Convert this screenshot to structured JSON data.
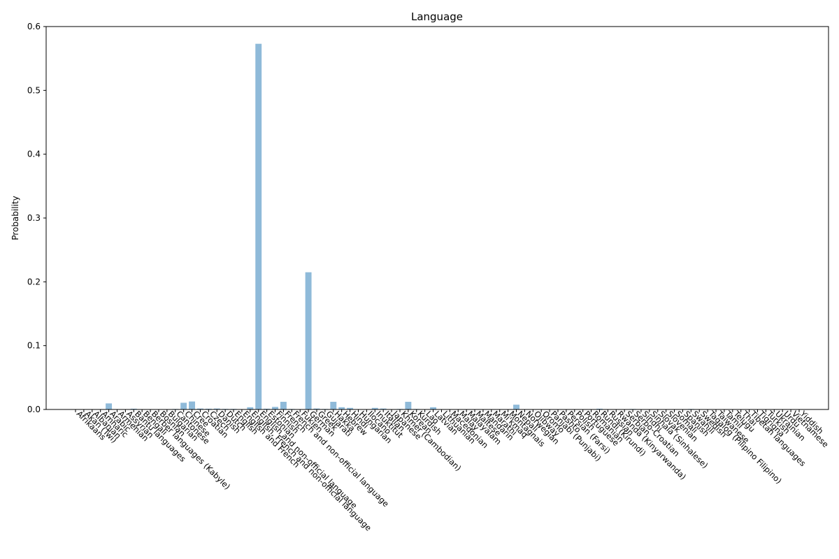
{
  "chart_data": {
    "type": "bar",
    "title": "Language",
    "xlabel": "",
    "ylabel": "Probability",
    "ylim": [
      0,
      0.6
    ],
    "yticks": [
      0.0,
      0.1,
      0.2,
      0.3,
      0.4,
      0.5,
      0.6
    ],
    "ytick_labels": [
      "0.0",
      "0.1",
      "0.2",
      "0.3",
      "0.4",
      "0.5",
      "0.6"
    ],
    "bar_color": "#8fbad9",
    "grid": false,
    "categories": [
      "Afrikaans",
      "Akan (Twi)",
      "Albanian",
      "Amharic",
      "Arabic",
      "Armenian",
      "Assyrian",
      "Bantu languages",
      "Bengali",
      "Berber languages (Kabyle)",
      "Bosnian",
      "Bulgarian",
      "Cantonese",
      "Chinese",
      "Cree",
      "Croatian",
      "Czech",
      "Danish",
      "Dutch",
      "English",
      "English and French",
      "English, French and non-official language",
      "English and non-official language",
      "Estonian",
      "Finnish",
      "French",
      "French and non-official language",
      "Fukien",
      "German",
      "Greek",
      "Gujarati",
      "Hakka",
      "Hebrew",
      "Hindi",
      "Hungarian",
      "Ilocano",
      "Inuktitut",
      "Italian",
      "Japanese",
      "Khmer (Cambodian)",
      "Korean",
      "Kurdish",
      "Lao",
      "Latvian",
      "Lithuanian",
      "Macedonian",
      "Malay",
      "Malayalam",
      "Maltese",
      "Mandarin",
      "Marathi",
      "Mi'kmaq",
      "Montagnais",
      "Nepali",
      "Norwegian",
      "Ojibway",
      "Oromo",
      "Panjabi (Punjabi)",
      "Pashto",
      "Persian (Farsi)",
      "Polish",
      "Portuguese",
      "Romanian",
      "Rundi (Kirundi)",
      "Russian",
      "Rwanda (Kinyarwanda)",
      "Serbian",
      "Serbo-Croatian",
      "Sindhi",
      "Sinhala (Sinhalese)",
      "Slovak",
      "Slovenian",
      "Somali",
      "Spanish",
      "Swahili",
      "Swedish",
      "Tagalog (Pilipino Filipino)",
      "Taiwanese",
      "Tamil",
      "Telugu",
      "Thai",
      "Tibetan languages",
      "Tigrigna",
      "Turkish",
      "Ukrainian",
      "Urdu",
      "Vietnamese",
      "Yiddish"
    ],
    "values": [
      0.0002,
      0.0002,
      0.0005,
      0.0003,
      0.0095,
      0.0005,
      0.0002,
      0.0012,
      0.0004,
      0.0002,
      0.0004,
      0.0003,
      0.0008,
      0.0105,
      0.0125,
      0.0015,
      0.0012,
      0.0015,
      0.0009,
      0.0009,
      0.0003,
      0.0035,
      0.573,
      0.0012,
      0.004,
      0.012,
      0.0008,
      0.0005,
      0.215,
      0.0015,
      0.0008,
      0.012,
      0.0035,
      0.0025,
      0.0005,
      0.0005,
      0.0025,
      0.0015,
      0.0002,
      0.0008,
      0.012,
      0.0008,
      0.0004,
      0.0035,
      0.0002,
      0.0002,
      0.0002,
      0.0004,
      0.0002,
      0.0004,
      0.0002,
      0.0005,
      0.0002,
      0.0075,
      0.0002,
      0.0002,
      0.0002,
      0.0002,
      0.0002,
      0.0002,
      0.0002,
      0.0002,
      0.0002,
      0.0012,
      0.0002,
      0.0002,
      0.0002,
      0.0008,
      0.0002,
      0.0002,
      0.0002,
      0.0002,
      0.0002,
      0.0002,
      0.0008,
      0.0002,
      0.0002,
      0.0002,
      0.0002,
      0.0002,
      0.0002,
      0.0002,
      0.0002,
      0.0002,
      0.0002,
      0.0002,
      0.0002,
      0.0002
    ]
  }
}
